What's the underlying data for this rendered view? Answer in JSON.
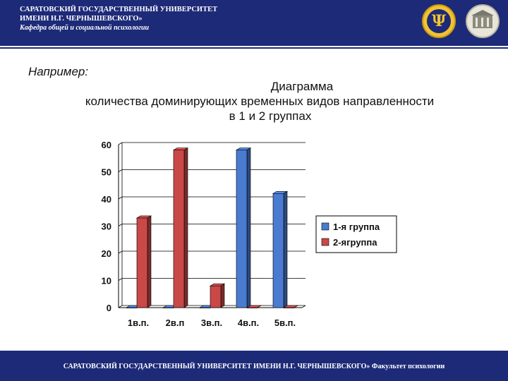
{
  "header": {
    "line1": "САРАТОВСКИЙ ГОСУДАРСТВЕННЫЙ УНИВЕРСИТЕТ",
    "line2": "ИМЕНИ Н.Г. ЧЕРНЫШЕВСКОГО»",
    "line3": "Кафедра общей и социальной психологии"
  },
  "logos": {
    "faculty_logo_text": "ФАКУЛЬТЕТ ПСИХОЛОГИИ",
    "psi_glyph": "Ψ"
  },
  "slide": {
    "example_label": "Например:",
    "title_line1": "Диаграмма",
    "title_line2": "количества доминирующих временных видов направленности",
    "title_line3": "в 1 и 2 группах"
  },
  "chart_data": {
    "type": "bar",
    "categories": [
      "1в.п.",
      "2в.п",
      "3в.п.",
      "4в.п.",
      "5в.п."
    ],
    "series": [
      {
        "name": "1-я группа",
        "values": [
          0,
          0,
          0,
          58,
          42
        ],
        "color": "#4a7bd0"
      },
      {
        "name": "2-ягруппа",
        "values": [
          33,
          58,
          8,
          0,
          0
        ],
        "color": "#c94848"
      }
    ],
    "ylim": [
      0,
      60
    ],
    "yticks": [
      0,
      10,
      20,
      30,
      40,
      50,
      60
    ],
    "grid": true,
    "style": "3d",
    "legend_position": "right"
  },
  "footer": {
    "text": "САРАТОВСКИЙ ГОСУДАРСТВЕННЫЙ УНИВЕРСИТЕТ ИМЕНИ Н.Г. ЧЕРНЫШЕВСКОГО» Факультет психологии"
  }
}
